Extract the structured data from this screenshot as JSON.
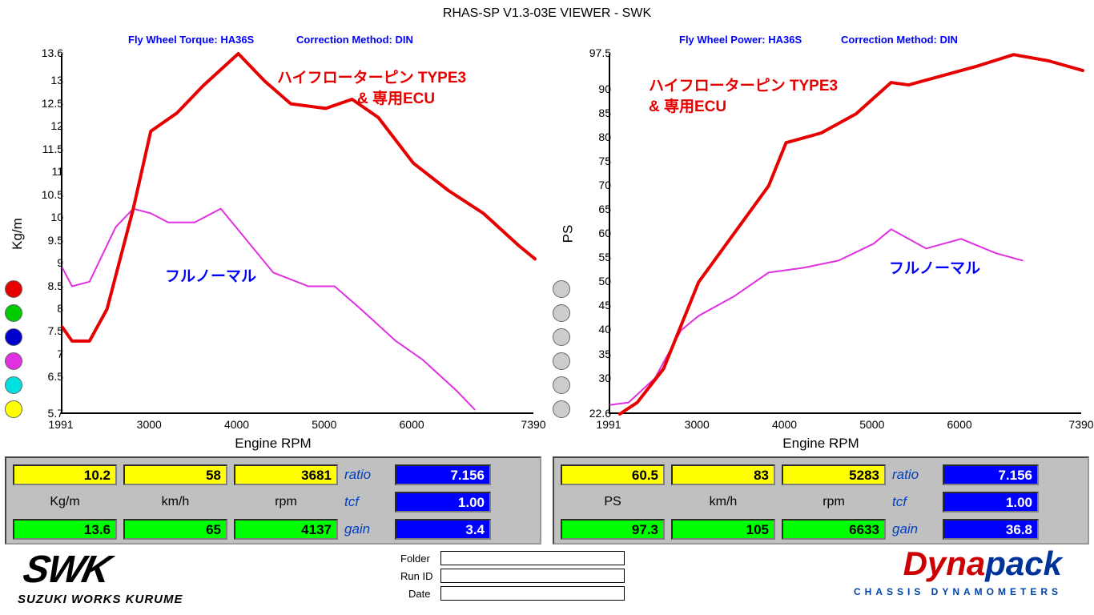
{
  "title": "RHAS-SP V1.3-03E VIEWER - SWK",
  "headers": {
    "left_a": "Fly Wheel Torque: HA36S",
    "left_b": "Correction Method: DIN",
    "right_a": "Fly Wheel Power: HA36S",
    "right_b": "Correction Method: DIN"
  },
  "colors": {
    "series_red": "#e60000",
    "series_magenta": "#e030e0",
    "text_blue": "#0000ff",
    "text_red": "#e60000",
    "box_yellow": "#ffff00",
    "box_green": "#00ff00",
    "box_blue": "#0000ff",
    "panel_bg": "#c0c0c0",
    "dots": [
      "#e60000",
      "#00cc00",
      "#0000cc",
      "#e030e0",
      "#00e0e0",
      "#ffff00"
    ],
    "dots_right": [
      "#cccccc",
      "#cccccc",
      "#cccccc",
      "#cccccc",
      "#cccccc",
      "#cccccc"
    ]
  },
  "left_chart": {
    "type": "line",
    "ylabel": "Kg/m",
    "xlabel": "Engine RPM",
    "xlim": [
      1991,
      7390
    ],
    "ylim": [
      5.7,
      13.6
    ],
    "yticks": [
      5.7,
      6.5,
      7.0,
      7.5,
      8.0,
      8.5,
      9.0,
      9.5,
      10.0,
      10.5,
      11.0,
      11.5,
      12.0,
      12.5,
      13.0,
      13.6
    ],
    "xticks": [
      1991,
      3000,
      4000,
      5000,
      6000,
      7390
    ],
    "line_width_red": 4,
    "line_width_mag": 2,
    "red_label1": "ハイフローターピン TYPE3",
    "red_label2": "& 専用ECU",
    "mag_label": "フルノーマル",
    "data_red_x": [
      1991,
      2100,
      2300,
      2500,
      2800,
      3000,
      3300,
      3600,
      4000,
      4300,
      4600,
      5000,
      5300,
      5600,
      6000,
      6400,
      6800,
      7200,
      7390
    ],
    "data_red_y": [
      7.6,
      7.3,
      7.3,
      8.0,
      10.2,
      11.9,
      12.3,
      12.9,
      13.6,
      13.0,
      12.5,
      12.4,
      12.6,
      12.2,
      11.2,
      10.6,
      10.1,
      9.4,
      9.1
    ],
    "data_mag_x": [
      1991,
      2100,
      2300,
      2600,
      2800,
      3000,
      3200,
      3500,
      3800,
      4100,
      4400,
      4800,
      5100,
      5400,
      5800,
      6100,
      6500,
      6700
    ],
    "data_mag_y": [
      8.9,
      8.5,
      8.6,
      9.8,
      10.2,
      10.1,
      9.9,
      9.9,
      10.2,
      9.5,
      8.8,
      8.5,
      8.5,
      8.0,
      7.3,
      6.9,
      6.2,
      5.8
    ]
  },
  "right_chart": {
    "type": "line",
    "ylabel": "PS",
    "xlabel": "Engine RPM",
    "xlim": [
      1991,
      7390
    ],
    "ylim": [
      22.6,
      97.5
    ],
    "yticks": [
      22.6,
      30.0,
      35.0,
      40.0,
      45.0,
      50.0,
      55.0,
      60.0,
      65.0,
      70.0,
      75.0,
      80.0,
      85.0,
      90.0,
      97.5
    ],
    "xticks": [
      1991,
      3000,
      4000,
      5000,
      6000,
      7390
    ],
    "line_width_red": 4,
    "line_width_mag": 2,
    "red_label1": "ハイフローターピン TYPE3",
    "red_label2": "& 専用ECU",
    "mag_label": "フルノーマル",
    "data_red_x": [
      2100,
      2300,
      2600,
      3000,
      3400,
      3800,
      4000,
      4400,
      4800,
      5200,
      5400,
      5800,
      6200,
      6600,
      7000,
      7390
    ],
    "data_red_y": [
      22.6,
      25,
      32,
      50,
      60,
      70,
      79,
      81,
      85,
      91.5,
      91,
      93,
      95,
      97.3,
      96,
      94
    ],
    "data_mag_x": [
      1991,
      2200,
      2500,
      2800,
      3000,
      3400,
      3800,
      4200,
      4600,
      5000,
      5200,
      5600,
      6000,
      6400,
      6700
    ],
    "data_mag_y": [
      24.5,
      25,
      30,
      40,
      43,
      47,
      52,
      53,
      54.5,
      58,
      61,
      57,
      59,
      56,
      54.5
    ]
  },
  "left_panel": {
    "yellow": [
      "10.2",
      "58",
      "3681"
    ],
    "labels": [
      "Kg/m",
      "km/h",
      "rpm"
    ],
    "green": [
      "13.6",
      "65",
      "4137"
    ],
    "side_labels": [
      "ratio",
      "tcf",
      "gain"
    ],
    "side_vals": [
      "7.156",
      "1.00",
      "3.4"
    ]
  },
  "right_panel": {
    "yellow": [
      "60.5",
      "83",
      "5283"
    ],
    "labels": [
      "PS",
      "km/h",
      "rpm"
    ],
    "green": [
      "97.3",
      "105",
      "6633"
    ],
    "side_labels": [
      "ratio",
      "tcf",
      "gain"
    ],
    "side_vals": [
      "7.156",
      "1.00",
      "36.8"
    ]
  },
  "footer": {
    "swk": "SWK",
    "swk_sub": "SUZUKI WORKS KURUME",
    "fields": [
      "Folder",
      "Run ID",
      "Date"
    ],
    "dyna1": "Dyna",
    "dyna2": "pack",
    "dyna_sub": "CHASSIS    DYNAMOMETERS"
  }
}
